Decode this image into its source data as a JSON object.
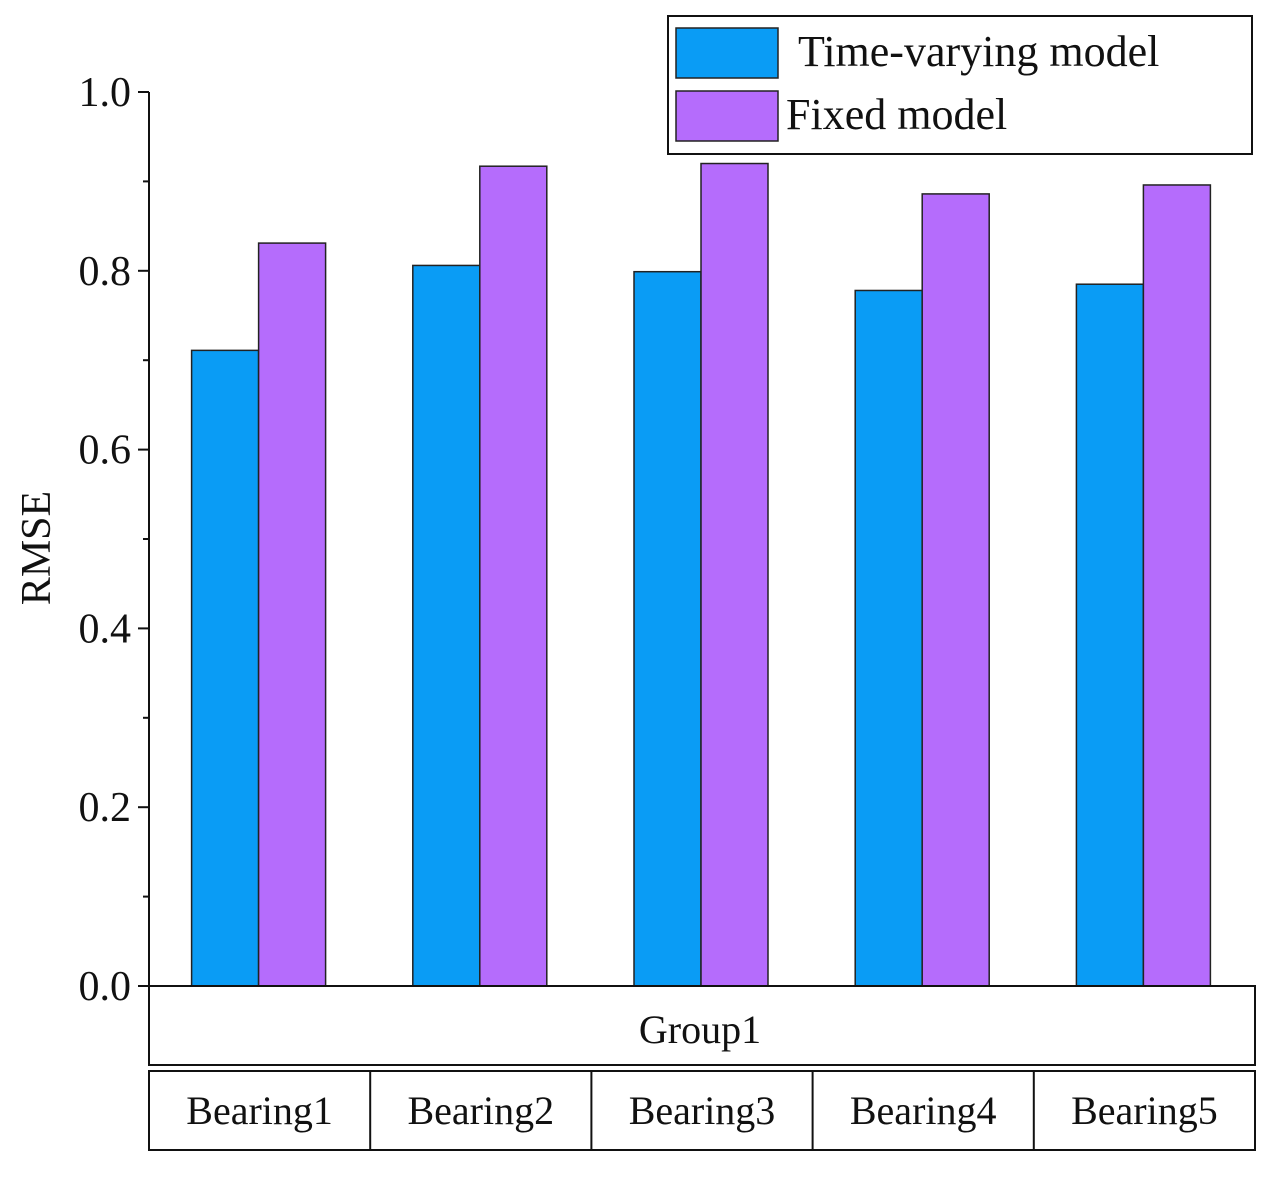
{
  "chart_data": {
    "type": "bar",
    "title": "",
    "ylabel": "RMSE",
    "xlabel": "",
    "group_label": "Group1",
    "categories": [
      "Bearing1",
      "Bearing2",
      "Bearing3",
      "Bearing4",
      "Bearing5"
    ],
    "series": [
      {
        "name": "Time-varying model",
        "color": "#0a9cf5",
        "values": [
          0.711,
          0.806,
          0.799,
          0.778,
          0.785
        ]
      },
      {
        "name": "Fixed model",
        "color": "#b56cfc",
        "values": [
          0.831,
          0.917,
          0.92,
          0.886,
          0.896
        ]
      }
    ],
    "ylim": [
      0.0,
      1.0
    ],
    "yticks": [
      "0.0",
      "0.2",
      "0.4",
      "0.6",
      "0.8",
      "1.0"
    ],
    "grid": false,
    "legend_position": "top-right"
  }
}
